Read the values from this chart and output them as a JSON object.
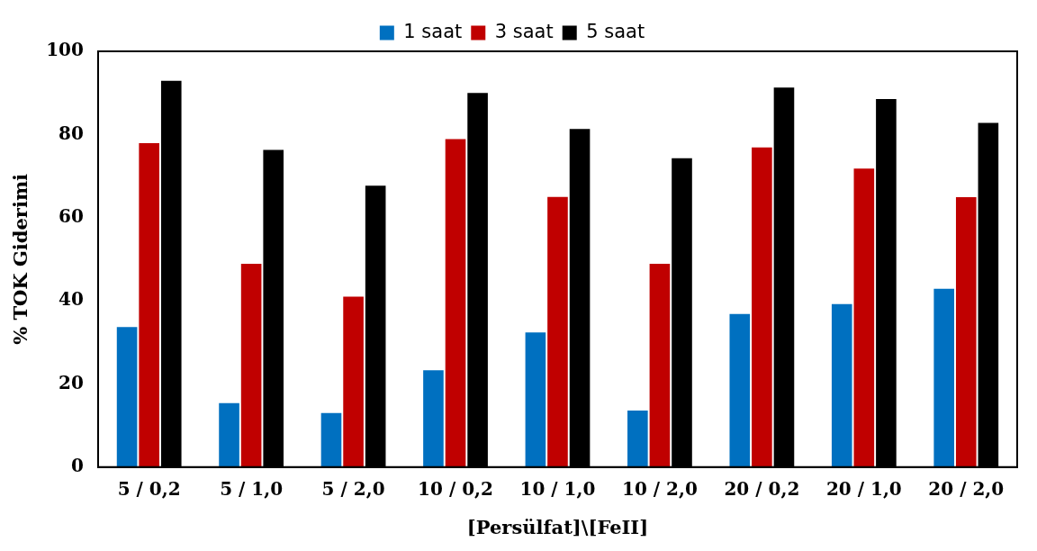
{
  "chart_data": {
    "type": "bar",
    "xlabel": "[Persülfat]\\[FeII]",
    "ylabel": "% TOK Giderimi",
    "categories": [
      "5 / 0,2",
      "5 / 1,0",
      "5 / 2,0",
      "10 / 0,2",
      "10 / 1,0",
      "10 / 2,0",
      "20 / 0,2",
      "20 / 1,0",
      "20 / 2,0"
    ],
    "series": [
      {
        "name": "1 saat",
        "color": "#0070c0",
        "values": [
          33.7,
          15.4,
          13.0,
          23.3,
          32.4,
          13.6,
          36.8,
          39.2,
          42.9
        ]
      },
      {
        "name": "3 saat",
        "color": "#c00000",
        "values": [
          77.9,
          48.9,
          41.0,
          78.9,
          65.0,
          48.9,
          76.9,
          71.8,
          64.9
        ]
      },
      {
        "name": "5 saat",
        "color": "#000000",
        "values": [
          92.9,
          76.3,
          67.7,
          90.0,
          81.3,
          74.3,
          91.3,
          88.5,
          82.8
        ]
      }
    ],
    "ylim": [
      0,
      100
    ],
    "yticks": [
      0,
      20,
      40,
      60,
      80,
      100
    ],
    "grid": false,
    "legend": "top"
  }
}
